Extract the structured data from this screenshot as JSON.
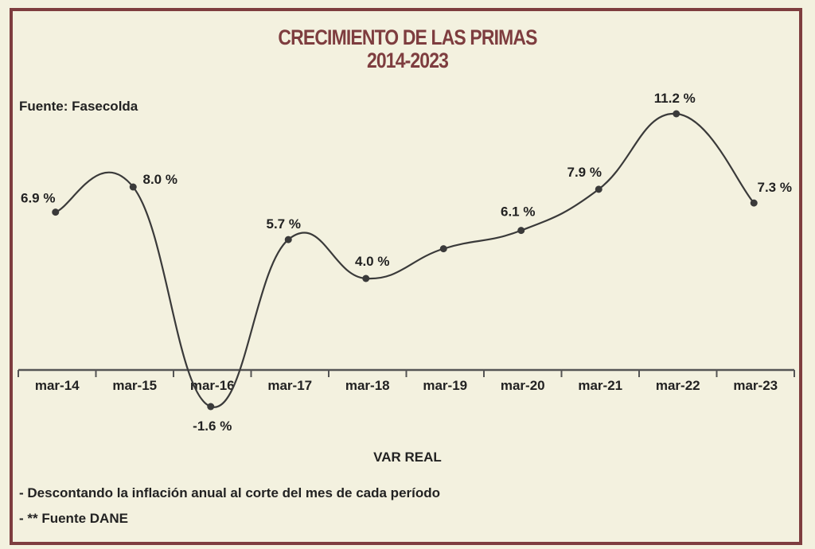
{
  "chart_data": {
    "type": "line",
    "title": "CRECIMIENTO DE LAS PRIMAS",
    "subtitle": "2014-2023",
    "source": "Fuente: Fasecolda",
    "categories": [
      "mar-14",
      "mar-15",
      "mar-16",
      "mar-17",
      "mar-18",
      "mar-19",
      "mar-20",
      "mar-21",
      "mar-22",
      "mar-23"
    ],
    "series": [
      {
        "name": "VAR REAL",
        "values": [
          6.9,
          8.0,
          -1.6,
          5.7,
          4.0,
          5.3,
          6.1,
          7.9,
          11.2,
          7.3
        ]
      }
    ],
    "data_labels": [
      "6.9 %",
      "8.0 %",
      "-1.6 %",
      "5.7 %",
      "4.0 %",
      "",
      "6.1 %",
      "7.9 %",
      "11.2 %",
      "7.3 %"
    ],
    "xlabel": "VAR REAL",
    "ylabel": "",
    "ylim": [
      -1.6,
      11.2
    ],
    "grid": false,
    "line_color": "#3a3a3a",
    "frame_color": "#7e3d3f",
    "notes": [
      "- Descontando la inflación anual al corte del mes de cada período",
      "- ** Fuente DANE"
    ]
  }
}
